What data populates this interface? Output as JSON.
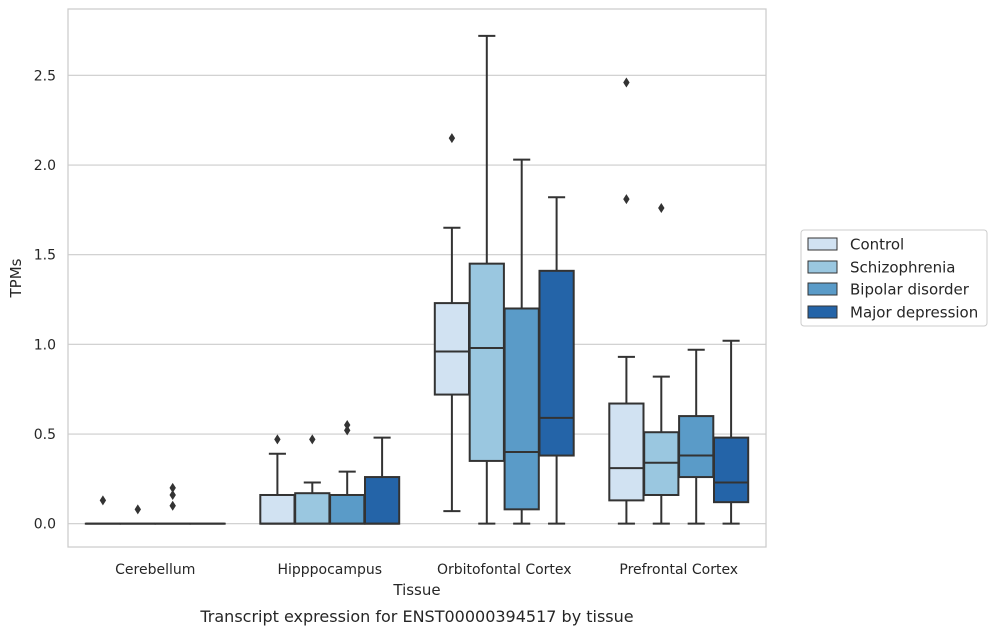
{
  "chart_data": {
    "type": "box",
    "title": "",
    "caption": "Transcript expression for ENST00000394517 by tissue",
    "xlabel": "Tissue",
    "ylabel": "TPMs",
    "ylim": [
      -0.13,
      2.87
    ],
    "yticks": [
      0.0,
      0.5,
      1.0,
      1.5,
      2.0,
      2.5
    ],
    "ytick_labels": [
      "0.0",
      "0.5",
      "1.0",
      "1.5",
      "2.0",
      "2.5"
    ],
    "grid": "horizontal",
    "legend_position": "right",
    "categories": [
      "Cerebellum",
      "Hipppocampus",
      "Orbitofontal Cortex",
      "Prefrontal Cortex"
    ],
    "series": [
      {
        "name": "Control",
        "color": "#d1e2f2",
        "boxes": [
          {
            "q1": 0.0,
            "median": 0.0,
            "q3": 0.0,
            "whisker_low": 0.0,
            "whisker_high": 0.0,
            "outliers": [
              0.13
            ]
          },
          {
            "q1": 0.0,
            "median": 0.0,
            "q3": 0.16,
            "whisker_low": 0.0,
            "whisker_high": 0.39,
            "outliers": [
              0.47
            ]
          },
          {
            "q1": 0.72,
            "median": 0.96,
            "q3": 1.23,
            "whisker_low": 0.07,
            "whisker_high": 1.65,
            "outliers": [
              2.15
            ]
          },
          {
            "q1": 0.13,
            "median": 0.31,
            "q3": 0.67,
            "whisker_low": 0.0,
            "whisker_high": 0.93,
            "outliers": [
              1.81,
              2.46
            ]
          }
        ]
      },
      {
        "name": "Schizophrenia",
        "color": "#9ac7e0",
        "boxes": [
          {
            "q1": 0.0,
            "median": 0.0,
            "q3": 0.0,
            "whisker_low": 0.0,
            "whisker_high": 0.0,
            "outliers": [
              0.08
            ]
          },
          {
            "q1": 0.0,
            "median": 0.0,
            "q3": 0.17,
            "whisker_low": 0.0,
            "whisker_high": 0.23,
            "outliers": [
              0.47
            ]
          },
          {
            "q1": 0.35,
            "median": 0.98,
            "q3": 1.45,
            "whisker_low": 0.0,
            "whisker_high": 2.72,
            "outliers": []
          },
          {
            "q1": 0.16,
            "median": 0.34,
            "q3": 0.51,
            "whisker_low": 0.0,
            "whisker_high": 0.82,
            "outliers": [
              1.76
            ]
          }
        ]
      },
      {
        "name": "Bipolar disorder",
        "color": "#5a9bc8",
        "boxes": [
          {
            "q1": 0.0,
            "median": 0.0,
            "q3": 0.0,
            "whisker_low": 0.0,
            "whisker_high": 0.0,
            "outliers": [
              0.1,
              0.16,
              0.2
            ]
          },
          {
            "q1": 0.0,
            "median": 0.0,
            "q3": 0.16,
            "whisker_low": 0.0,
            "whisker_high": 0.29,
            "outliers": [
              0.52,
              0.55
            ]
          },
          {
            "q1": 0.08,
            "median": 0.4,
            "q3": 1.2,
            "whisker_low": 0.0,
            "whisker_high": 2.03,
            "outliers": []
          },
          {
            "q1": 0.26,
            "median": 0.38,
            "q3": 0.6,
            "whisker_low": 0.0,
            "whisker_high": 0.97,
            "outliers": []
          }
        ]
      },
      {
        "name": "Major depression",
        "color": "#2464a8",
        "boxes": [
          {
            "q1": 0.0,
            "median": 0.0,
            "q3": 0.0,
            "whisker_low": 0.0,
            "whisker_high": 0.0,
            "outliers": []
          },
          {
            "q1": 0.0,
            "median": 0.0,
            "q3": 0.26,
            "whisker_low": 0.0,
            "whisker_high": 0.48,
            "outliers": []
          },
          {
            "q1": 0.38,
            "median": 0.59,
            "q3": 1.41,
            "whisker_low": 0.0,
            "whisker_high": 1.82,
            "outliers": []
          },
          {
            "q1": 0.12,
            "median": 0.23,
            "q3": 0.48,
            "whisker_low": 0.0,
            "whisker_high": 1.02,
            "outliers": []
          }
        ]
      }
    ]
  }
}
